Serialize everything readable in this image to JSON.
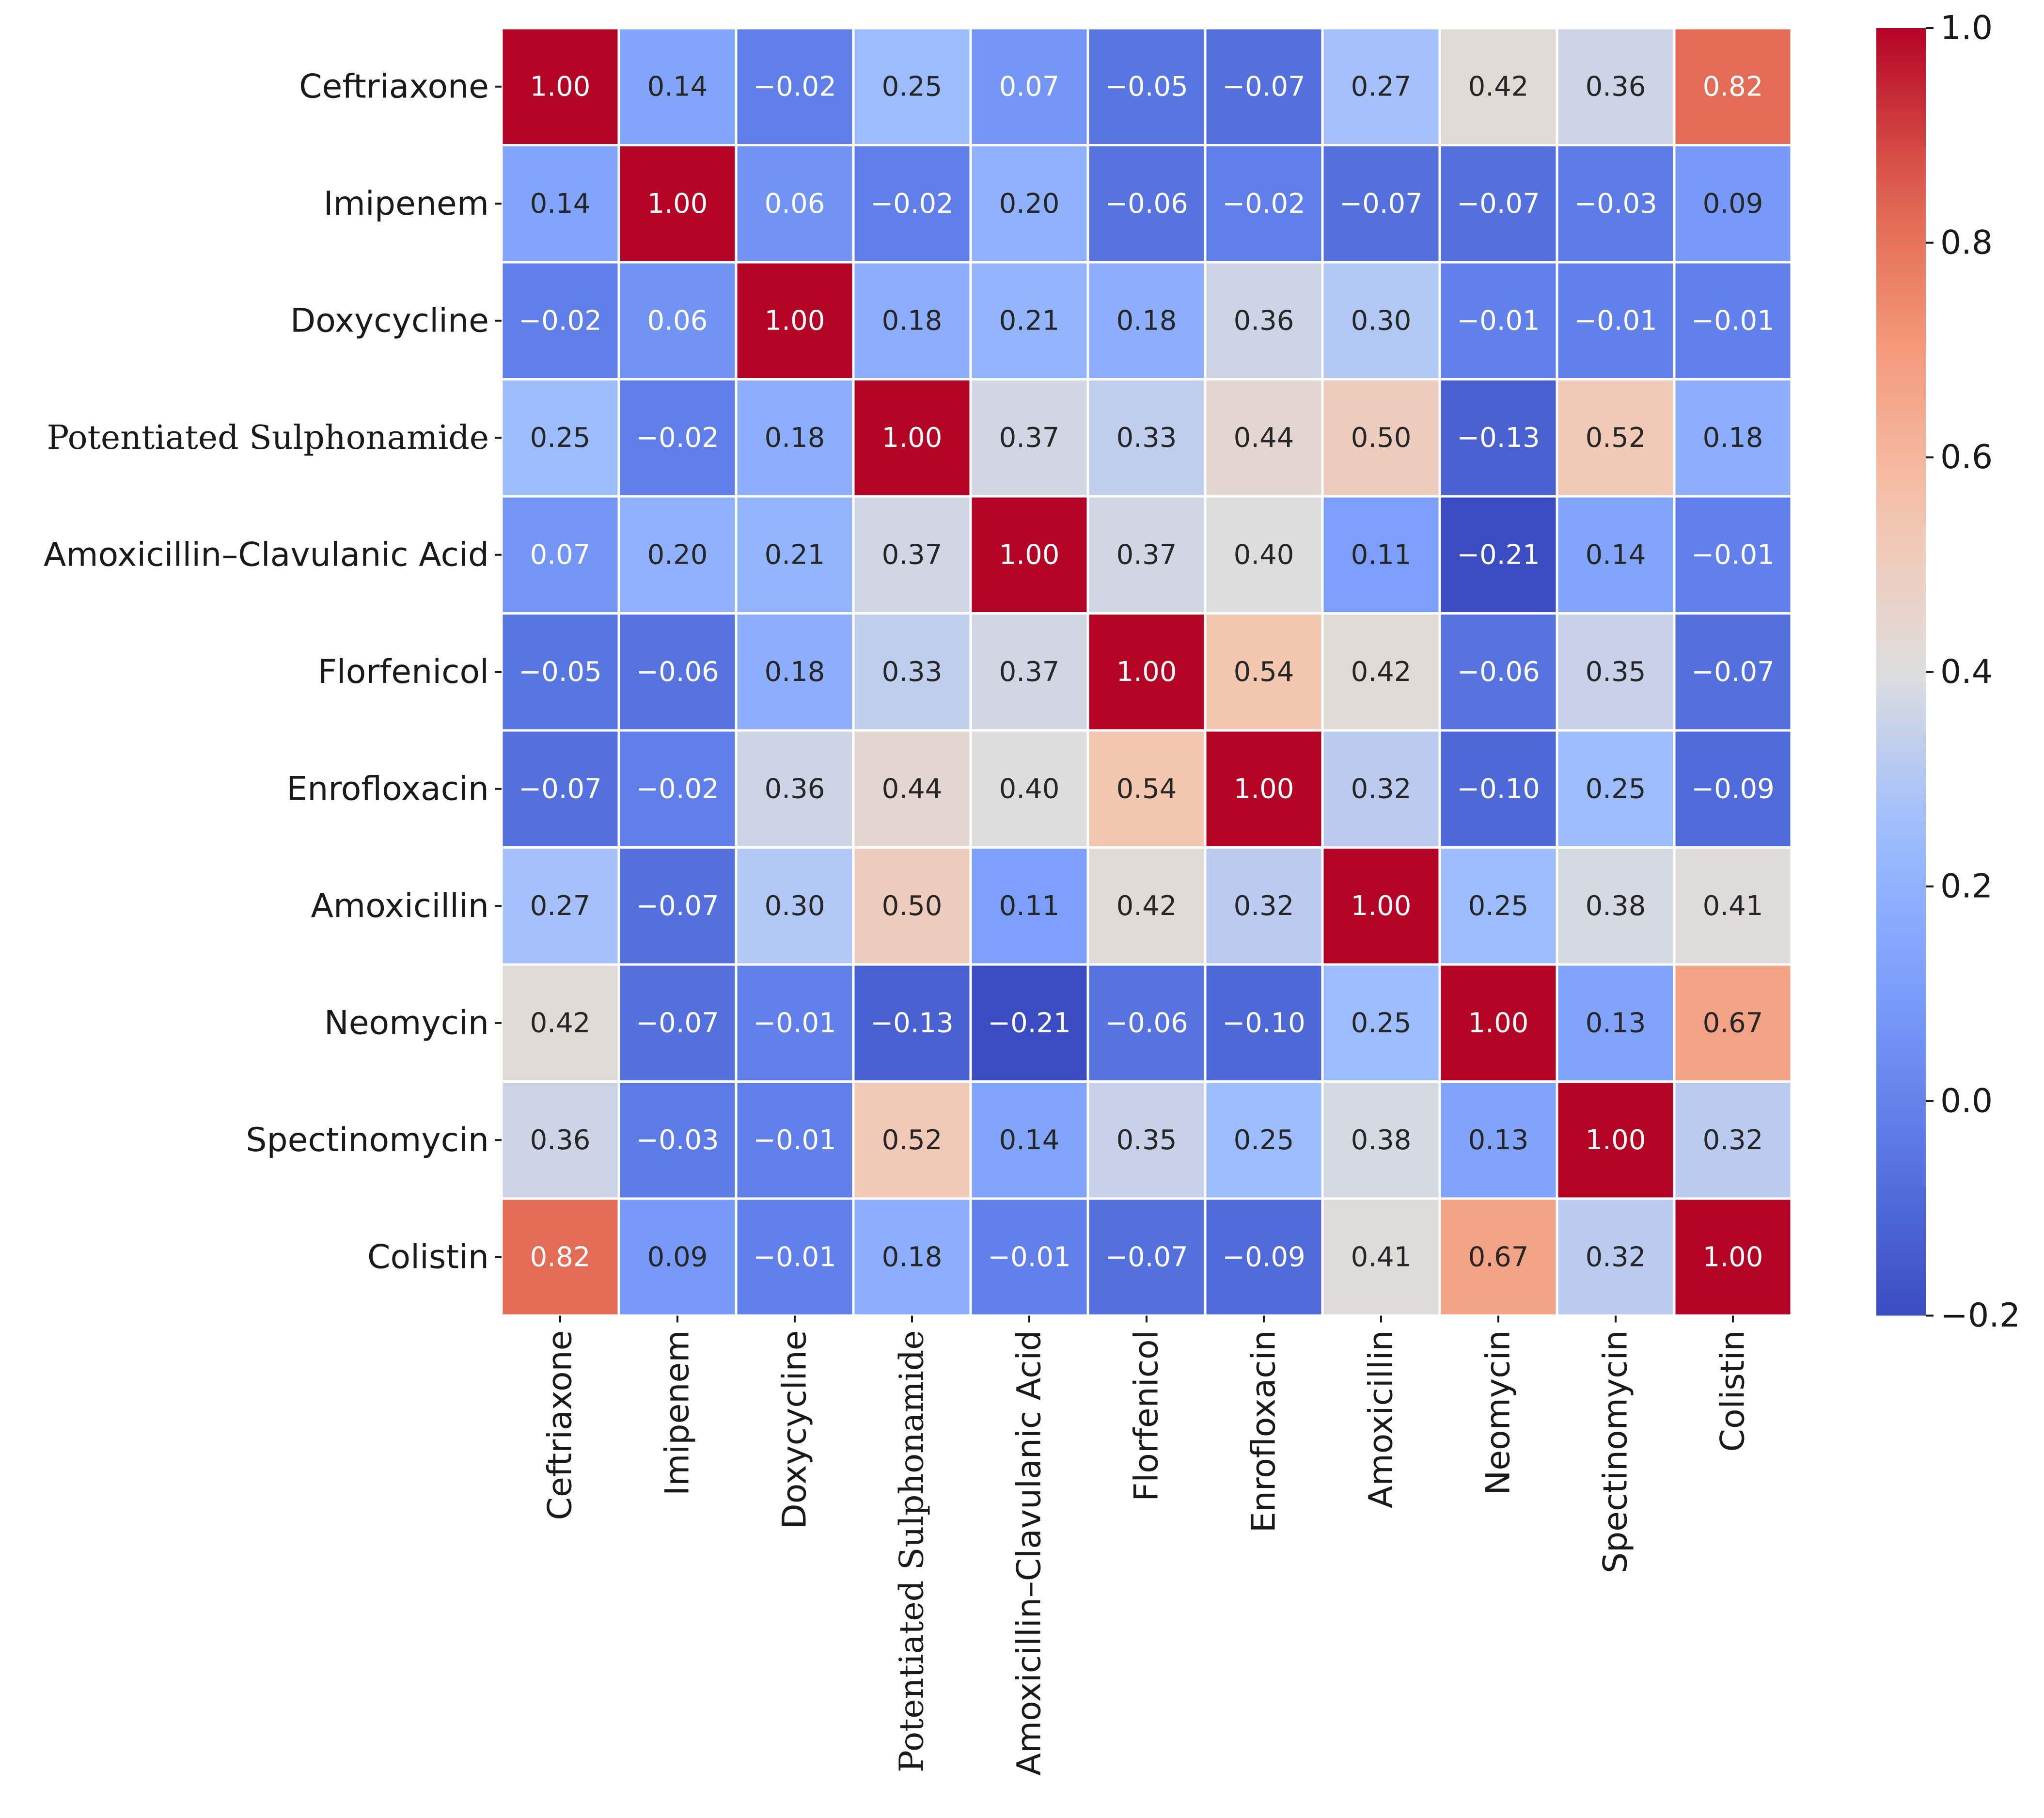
{
  "chart_data": {
    "type": "heatmap",
    "title": "",
    "xlabel": "",
    "ylabel": "",
    "colormap": "coolwarm",
    "vmin": -0.2,
    "vmax": 1.0,
    "row_labels": [
      "Ceftriaxone",
      "Imipenem",
      "Doxycycline",
      "Potentiated Sulphonamide",
      "Amoxicillin–Clavulanic Acid",
      "Florfenicol",
      "Enrofloxacin",
      "Amoxicillin",
      "Neomycin",
      "Spectinomycin",
      "Colistin"
    ],
    "col_labels": [
      "Ceftriaxone",
      "Imipenem",
      "Doxycycline",
      "Potentiated Sulphonamide",
      "Amoxicillin–Clavulanic Acid",
      "Florfenicol",
      "Enrofloxacin",
      "Amoxicillin",
      "Neomycin",
      "Spectinomycin",
      "Colistin"
    ],
    "values": [
      [
        1.0,
        0.14,
        -0.02,
        0.25,
        0.07,
        -0.05,
        -0.07,
        0.27,
        0.42,
        0.36,
        0.82
      ],
      [
        0.14,
        1.0,
        0.06,
        -0.02,
        0.2,
        -0.06,
        -0.02,
        -0.07,
        -0.07,
        -0.03,
        0.09
      ],
      [
        -0.02,
        0.06,
        1.0,
        0.18,
        0.21,
        0.18,
        0.36,
        0.3,
        -0.01,
        -0.01,
        -0.01
      ],
      [
        0.25,
        -0.02,
        0.18,
        1.0,
        0.37,
        0.33,
        0.44,
        0.5,
        -0.13,
        0.52,
        0.18
      ],
      [
        0.07,
        0.2,
        0.21,
        0.37,
        1.0,
        0.37,
        0.4,
        0.11,
        -0.21,
        0.14,
        -0.01
      ],
      [
        -0.05,
        -0.06,
        0.18,
        0.33,
        0.37,
        1.0,
        0.54,
        0.42,
        -0.06,
        0.35,
        -0.07
      ],
      [
        -0.07,
        -0.02,
        0.36,
        0.44,
        0.4,
        0.54,
        1.0,
        0.32,
        -0.1,
        0.25,
        -0.09
      ],
      [
        0.27,
        -0.07,
        0.3,
        0.5,
        0.11,
        0.42,
        0.32,
        1.0,
        0.25,
        0.38,
        0.41
      ],
      [
        0.42,
        -0.07,
        -0.01,
        -0.13,
        -0.21,
        -0.06,
        -0.1,
        0.25,
        1.0,
        0.13,
        0.67
      ],
      [
        0.36,
        -0.03,
        -0.01,
        0.52,
        0.14,
        0.35,
        0.25,
        0.38,
        0.13,
        1.0,
        0.32
      ],
      [
        0.82,
        0.09,
        -0.01,
        0.18,
        -0.01,
        -0.07,
        -0.09,
        0.41,
        0.67,
        0.32,
        1.0
      ]
    ],
    "annotation_format": "0.00",
    "colorbar": {
      "ticks": [
        1.0,
        0.8,
        0.6,
        0.4,
        0.2,
        0.0,
        -0.2
      ],
      "tick_labels": [
        "1.0",
        "0.8",
        "0.6",
        "0.4",
        "0.2",
        "0.0",
        "−0.2"
      ],
      "position": "right"
    },
    "grid_lines_color": "#ffffff"
  }
}
